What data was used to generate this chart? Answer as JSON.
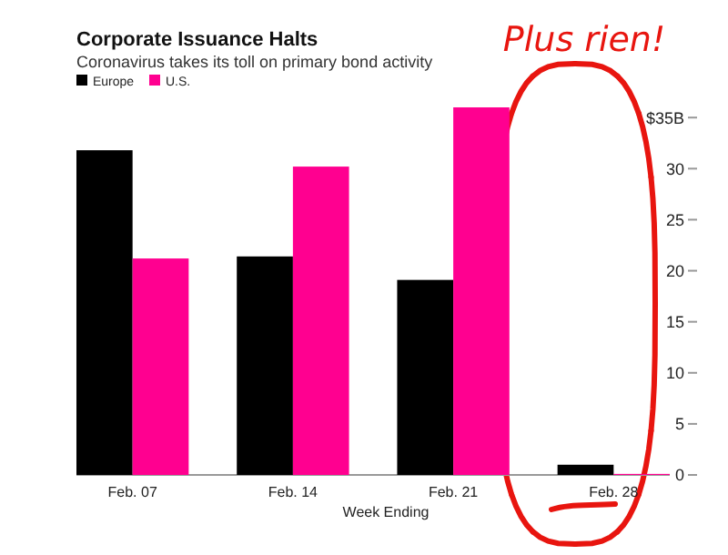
{
  "chart_data": {
    "type": "bar",
    "title": "Corporate Issuance Halts",
    "subtitle": "Coronavirus takes its toll on primary bond activity",
    "xlabel": "Week Ending",
    "categories": [
      "Feb. 07",
      "Feb. 14",
      "Feb. 21",
      "Feb. 28"
    ],
    "series": [
      {
        "name": "Europe",
        "color": "#000000",
        "values": [
          31.8,
          21.4,
          19.1,
          1.0
        ]
      },
      {
        "name": "U.S.",
        "color": "#ff0090",
        "values": [
          21.2,
          30.2,
          36,
          0.1
        ]
      }
    ],
    "ylim": [
      0,
      36
    ],
    "yticks": [
      0,
      5,
      10,
      15,
      20,
      25,
      30,
      {
        "value": 35,
        "label": "$35B"
      }
    ],
    "legend": "top left",
    "grid": false,
    "annotations": [
      "Plus rien!"
    ]
  }
}
